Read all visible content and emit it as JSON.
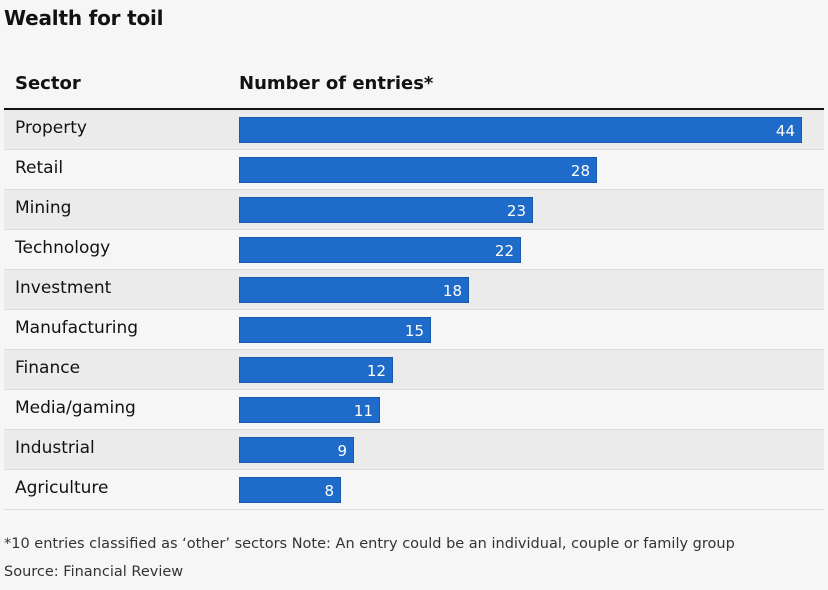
{
  "title": "Wealth for toil",
  "columns": {
    "sector": "Sector",
    "entries": "Number of entries*"
  },
  "chart_data": {
    "type": "bar",
    "orientation": "horizontal",
    "title": "Wealth for toil",
    "xlabel": "Number of entries*",
    "ylabel": "Sector",
    "xlim": [
      0,
      44
    ],
    "categories": [
      "Property",
      "Retail",
      "Mining",
      "Technology",
      "Investment",
      "Manufacturing",
      "Finance",
      "Media/gaming",
      "Industrial",
      "Agriculture"
    ],
    "values": [
      44,
      28,
      23,
      22,
      18,
      15,
      12,
      11,
      9,
      8
    ],
    "color": "#1f6bc9"
  },
  "footnote": "*10 entries classified as ‘other’ sectors Note: An entry could be an individual, couple or family group",
  "source": "Source: Financial Review"
}
